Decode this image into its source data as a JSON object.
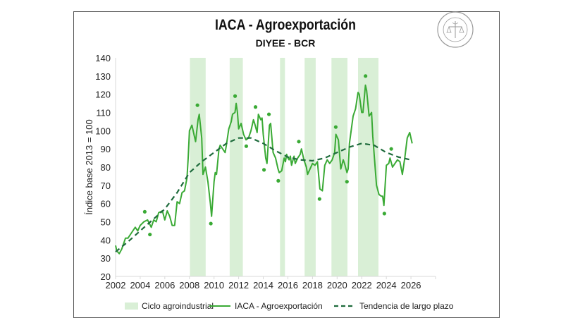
{
  "chart_data": {
    "type": "line",
    "title": "IACA - Agroexportación",
    "subtitle": "DIYEE - BCR",
    "ylabel": "Índice base 2013 = 100",
    "xlabel": "",
    "xlim": [
      2002,
      2028
    ],
    "ylim": [
      20,
      140
    ],
    "x_ticks": [
      "2002",
      "2004",
      "2006",
      "2008",
      "2010",
      "2012",
      "2014",
      "2016",
      "2018",
      "2020",
      "2022",
      "2024",
      "2026"
    ],
    "y_ticks": [
      "20",
      "30",
      "40",
      "50",
      "60",
      "70",
      "80",
      "90",
      "100",
      "110",
      "120",
      "130",
      "140"
    ],
    "grid": false,
    "legend_position": "bottom",
    "legend": [
      "Ciclo agroindustrial",
      "IACA - Agroexportación",
      "Tendencia de largo plazo"
    ],
    "colors": {
      "band": "#d9efd6",
      "line": "#3aaa35",
      "dots": "#3aaa35",
      "trend": "#1e6b3c"
    },
    "cycles": [
      [
        2008.04,
        2009.32
      ],
      [
        2011.27,
        2012.34
      ],
      [
        2015.36,
        2015.76
      ],
      [
        2017.36,
        2018.26
      ],
      [
        2019.54,
        2020.84
      ],
      [
        2021.7,
        2023.36
      ]
    ],
    "series": [
      {
        "name": "IACA - Agroexportación",
        "style": "solid",
        "x": [
          2002.0,
          2002.1,
          2002.3,
          2002.5,
          2002.8,
          2003.0,
          2003.3,
          2003.6,
          2003.8,
          2004.0,
          2004.3,
          2004.6,
          2004.9,
          2005.1,
          2005.3,
          2005.5,
          2005.8,
          2006.0,
          2006.2,
          2006.4,
          2006.6,
          2006.8,
          2007.0,
          2007.2,
          2007.4,
          2007.6,
          2007.8,
          2007.9,
          2008.0,
          2008.2,
          2008.5,
          2008.7,
          2008.8,
          2009.0,
          2009.1,
          2009.3,
          2009.5,
          2009.7,
          2009.8,
          2010.0,
          2010.1,
          2010.2,
          2010.4,
          2010.5,
          2010.8,
          2010.9,
          2011.0,
          2011.2,
          2011.4,
          2011.5,
          2011.7,
          2011.8,
          2011.9,
          2012.0,
          2012.2,
          2012.4,
          2012.6,
          2012.8,
          2013.0,
          2013.2,
          2013.3,
          2013.5,
          2013.6,
          2013.8,
          2013.9,
          2014.0,
          2014.2,
          2014.3,
          2014.5,
          2014.6,
          2014.8,
          2015.0,
          2015.2,
          2015.3,
          2015.5,
          2015.7,
          2015.8,
          2015.9,
          2016.0,
          2016.1,
          2016.2,
          2016.3,
          2016.5,
          2016.6,
          2016.8,
          2017.0,
          2017.1,
          2017.3,
          2017.5,
          2017.6,
          2017.8,
          2018.0,
          2018.2,
          2018.4,
          2018.6,
          2018.8,
          2019.0,
          2019.2,
          2019.4,
          2019.6,
          2019.8,
          2019.9,
          2020.1,
          2020.3,
          2020.5,
          2020.6,
          2020.8,
          2020.9,
          2021.0,
          2021.3,
          2021.5,
          2021.7,
          2021.8,
          2022.0,
          2022.1,
          2022.3,
          2022.4,
          2022.6,
          2022.8,
          2022.9,
          2023.2,
          2023.4,
          2023.6,
          2023.7,
          2023.8,
          2024.0,
          2024.2,
          2024.3,
          2024.5,
          2024.7,
          2024.9,
          2025.1,
          2025.3,
          2025.5,
          2025.7,
          2025.9,
          2026.1
        ],
        "y": [
          37,
          34,
          32.5,
          35,
          41,
          41,
          44,
          47,
          45,
          48,
          50,
          51,
          47,
          51,
          50,
          55,
          56,
          51,
          56,
          53,
          48,
          48,
          61,
          60,
          66,
          67,
          74,
          85,
          100,
          103,
          94,
          106,
          109,
          96,
          76,
          80,
          72,
          60,
          53,
          72,
          77,
          76,
          90,
          92,
          89,
          88,
          92,
          101,
          105,
          109,
          110,
          115,
          110,
          101,
          104,
          98,
          95,
          96,
          100,
          106,
          104,
          99,
          109,
          106,
          107,
          98,
          85,
          82,
          103,
          104,
          88,
          85,
          79,
          77,
          78,
          85,
          83,
          87,
          85,
          84,
          86,
          81,
          86,
          82,
          85,
          87,
          90,
          84,
          80,
          76,
          79,
          82,
          81,
          83,
          68,
          67,
          81,
          84,
          82,
          84,
          88,
          98,
          95,
          79,
          84,
          82,
          77,
          79,
          93,
          108,
          112,
          121,
          120,
          110,
          110,
          125,
          122,
          108,
          110,
          97,
          70,
          65,
          64,
          64,
          59,
          81,
          82,
          85,
          80,
          82,
          84,
          83,
          76,
          85,
          96,
          99,
          93
        ]
      },
      {
        "name": "Tendencia de largo plazo",
        "style": "dashed",
        "x": [
          2002,
          2003,
          2004,
          2005,
          2006,
          2007,
          2008,
          2009,
          2010,
          2011,
          2012,
          2013,
          2014,
          2015,
          2016,
          2017,
          2018,
          2019,
          2020,
          2021,
          2022,
          2023,
          2024,
          2025,
          2026
        ],
        "y": [
          33.5,
          39,
          45,
          51,
          57,
          66,
          77,
          83,
          88,
          93,
          96,
          96,
          93,
          89,
          85.5,
          84,
          83.5,
          85,
          88,
          91,
          93,
          92,
          88,
          85.5,
          84
        ]
      },
      {
        "name": "",
        "style": "points",
        "x": [
          2004.37,
          2004.79,
          2008.65,
          2009.74,
          2011.71,
          2012.62,
          2013.37,
          2014.06,
          2014.46,
          2015.22,
          2016.89,
          2018.57,
          2019.89,
          2020.8,
          2022.31,
          2023.84,
          2024.4
        ],
        "y": [
          55.5,
          43,
          114,
          49,
          119,
          91.5,
          113,
          78.5,
          109,
          72.5,
          94,
          62.5,
          102,
          72,
          130,
          54.5,
          90
        ]
      }
    ]
  },
  "logo": {
    "text": "BOLSA DE COMERCIO DE ROSARIO"
  }
}
